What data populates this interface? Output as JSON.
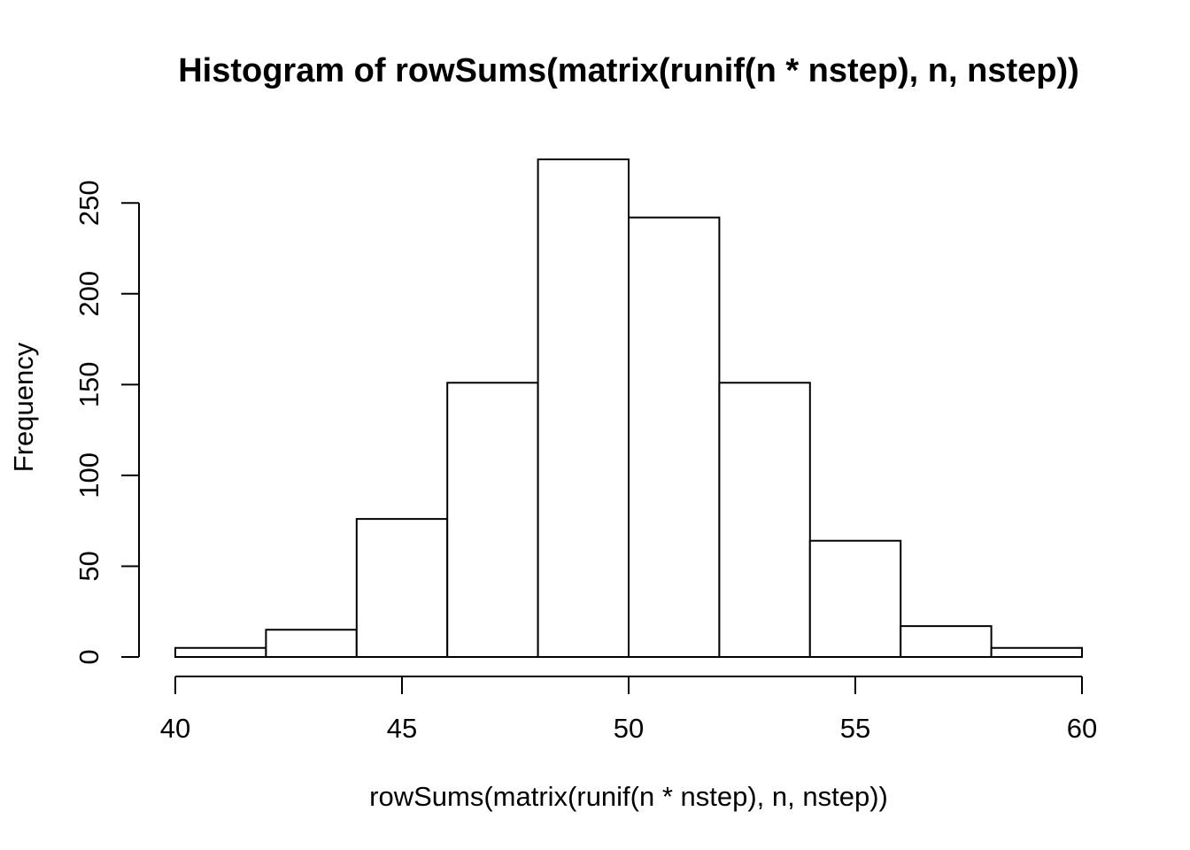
{
  "chart_data": {
    "type": "bar",
    "title": "Histogram of rowSums(matrix(runif(n * nstep), n, nstep))",
    "xlabel": "rowSums(matrix(runif(n * nstep), n, nstep))",
    "ylabel": "Frequency",
    "bin_edges": [
      40,
      42,
      44,
      46,
      48,
      50,
      52,
      54,
      56,
      58,
      60
    ],
    "values": [
      5,
      15,
      76,
      151,
      274,
      242,
      151,
      64,
      17,
      5
    ],
    "xlim": [
      40,
      60
    ],
    "ylim": [
      0,
      274
    ],
    "x_ticks": [
      40,
      45,
      50,
      55,
      60
    ],
    "y_ticks": [
      0,
      50,
      100,
      150,
      200,
      250
    ],
    "grid": false,
    "bar_fill": "#ffffff",
    "bar_stroke": "#000000"
  }
}
